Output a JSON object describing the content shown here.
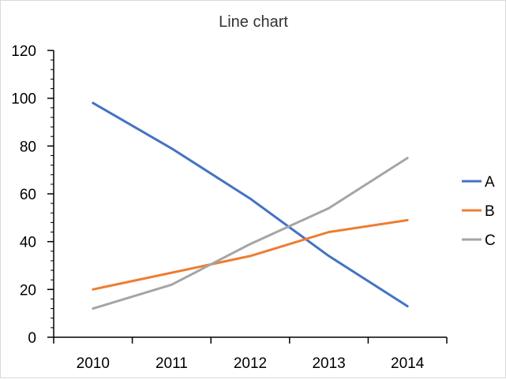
{
  "chart_data": {
    "type": "line",
    "title": "Line chart",
    "xlabel": "",
    "ylabel": "",
    "categories": [
      "2010",
      "2011",
      "2012",
      "2013",
      "2014"
    ],
    "ylim": [
      0,
      120
    ],
    "y_ticks": [
      "0",
      "20",
      "40",
      "60",
      "80",
      "100",
      "120"
    ],
    "y_minor_step": 4,
    "grid": false,
    "legend_position": "right",
    "series": [
      {
        "name": "A",
        "color": "#4472c4",
        "values": [
          98,
          79,
          58,
          34,
          13
        ]
      },
      {
        "name": "B",
        "color": "#ed7d31",
        "values": [
          20,
          27,
          34,
          44,
          49
        ]
      },
      {
        "name": "C",
        "color": "#a5a5a5",
        "values": [
          12,
          22,
          39,
          54,
          75
        ]
      }
    ]
  }
}
